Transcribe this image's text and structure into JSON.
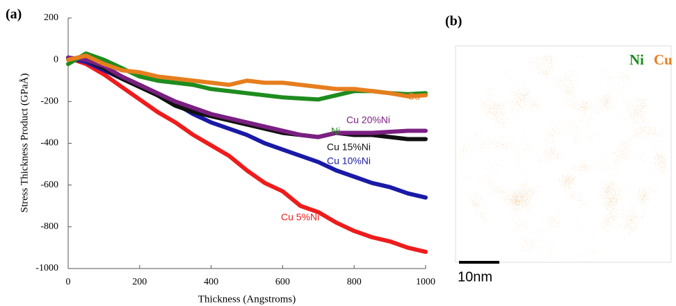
{
  "chart_data": {
    "type": "line",
    "panel_label": "(a)",
    "x_label": "Thickness (Angstroms)",
    "y_label": "Stress Thickness Product (GPaÅ)",
    "x": [
      0,
      50,
      100,
      150,
      200,
      250,
      300,
      350,
      400,
      450,
      500,
      550,
      600,
      650,
      700,
      750,
      800,
      850,
      900,
      950,
      1000
    ],
    "series": [
      {
        "name": "Cu",
        "color": "#e67e1e",
        "values": [
          0,
          20,
          -20,
          -50,
          -60,
          -80,
          -90,
          -100,
          -110,
          -120,
          -100,
          -110,
          -110,
          -120,
          -130,
          -140,
          -140,
          -150,
          -160,
          -175,
          -170
        ]
      },
      {
        "name": "Ni",
        "color": "#1e8c1e",
        "values": [
          -20,
          30,
          0,
          -40,
          -80,
          -100,
          -110,
          -120,
          -140,
          -150,
          -160,
          -170,
          -180,
          -185,
          -190,
          -170,
          -150,
          -150,
          -160,
          -165,
          -160
        ]
      },
      {
        "name": "Cu 20%Ni",
        "color": "#7b1f82",
        "values": [
          10,
          0,
          -30,
          -80,
          -120,
          -160,
          -200,
          -230,
          -260,
          -280,
          -300,
          -320,
          -340,
          -360,
          -370,
          -350,
          -350,
          -350,
          -345,
          -340,
          -340
        ]
      },
      {
        "name": "Cu 15%Ni",
        "color": "#111111",
        "values": [
          10,
          0,
          -40,
          -90,
          -130,
          -170,
          -220,
          -250,
          -270,
          -290,
          -310,
          -330,
          -350,
          -360,
          -370,
          -350,
          -360,
          -360,
          -370,
          -380,
          -380
        ]
      },
      {
        "name": "Cu 10%Ni",
        "color": "#1a1aa6",
        "values": [
          10,
          -10,
          -50,
          -90,
          -130,
          -170,
          -210,
          -260,
          -300,
          -330,
          -360,
          -400,
          -430,
          -460,
          -490,
          -530,
          -560,
          -590,
          -610,
          -640,
          -660
        ]
      },
      {
        "name": "Cu 5%Ni",
        "color": "#ee1c1c",
        "values": [
          10,
          -20,
          -70,
          -130,
          -190,
          -250,
          -300,
          -360,
          -410,
          -460,
          -530,
          -590,
          -630,
          -700,
          -730,
          -780,
          -820,
          -850,
          -870,
          -900,
          -920
        ]
      }
    ],
    "xlim": [
      0,
      1000
    ],
    "xticks": [
      0,
      200,
      400,
      600,
      800,
      1000
    ],
    "ylim": [
      -1000,
      200
    ],
    "yticks": [
      -1000,
      -800,
      -600,
      -400,
      -200,
      0,
      200
    ]
  },
  "panel_b": {
    "label": "(b)",
    "legend": [
      {
        "text": "Ni",
        "color": "#1e8c1e"
      },
      {
        "text": "Cu",
        "color": "#e67e1e"
      }
    ],
    "scale_bar": "10nm"
  }
}
